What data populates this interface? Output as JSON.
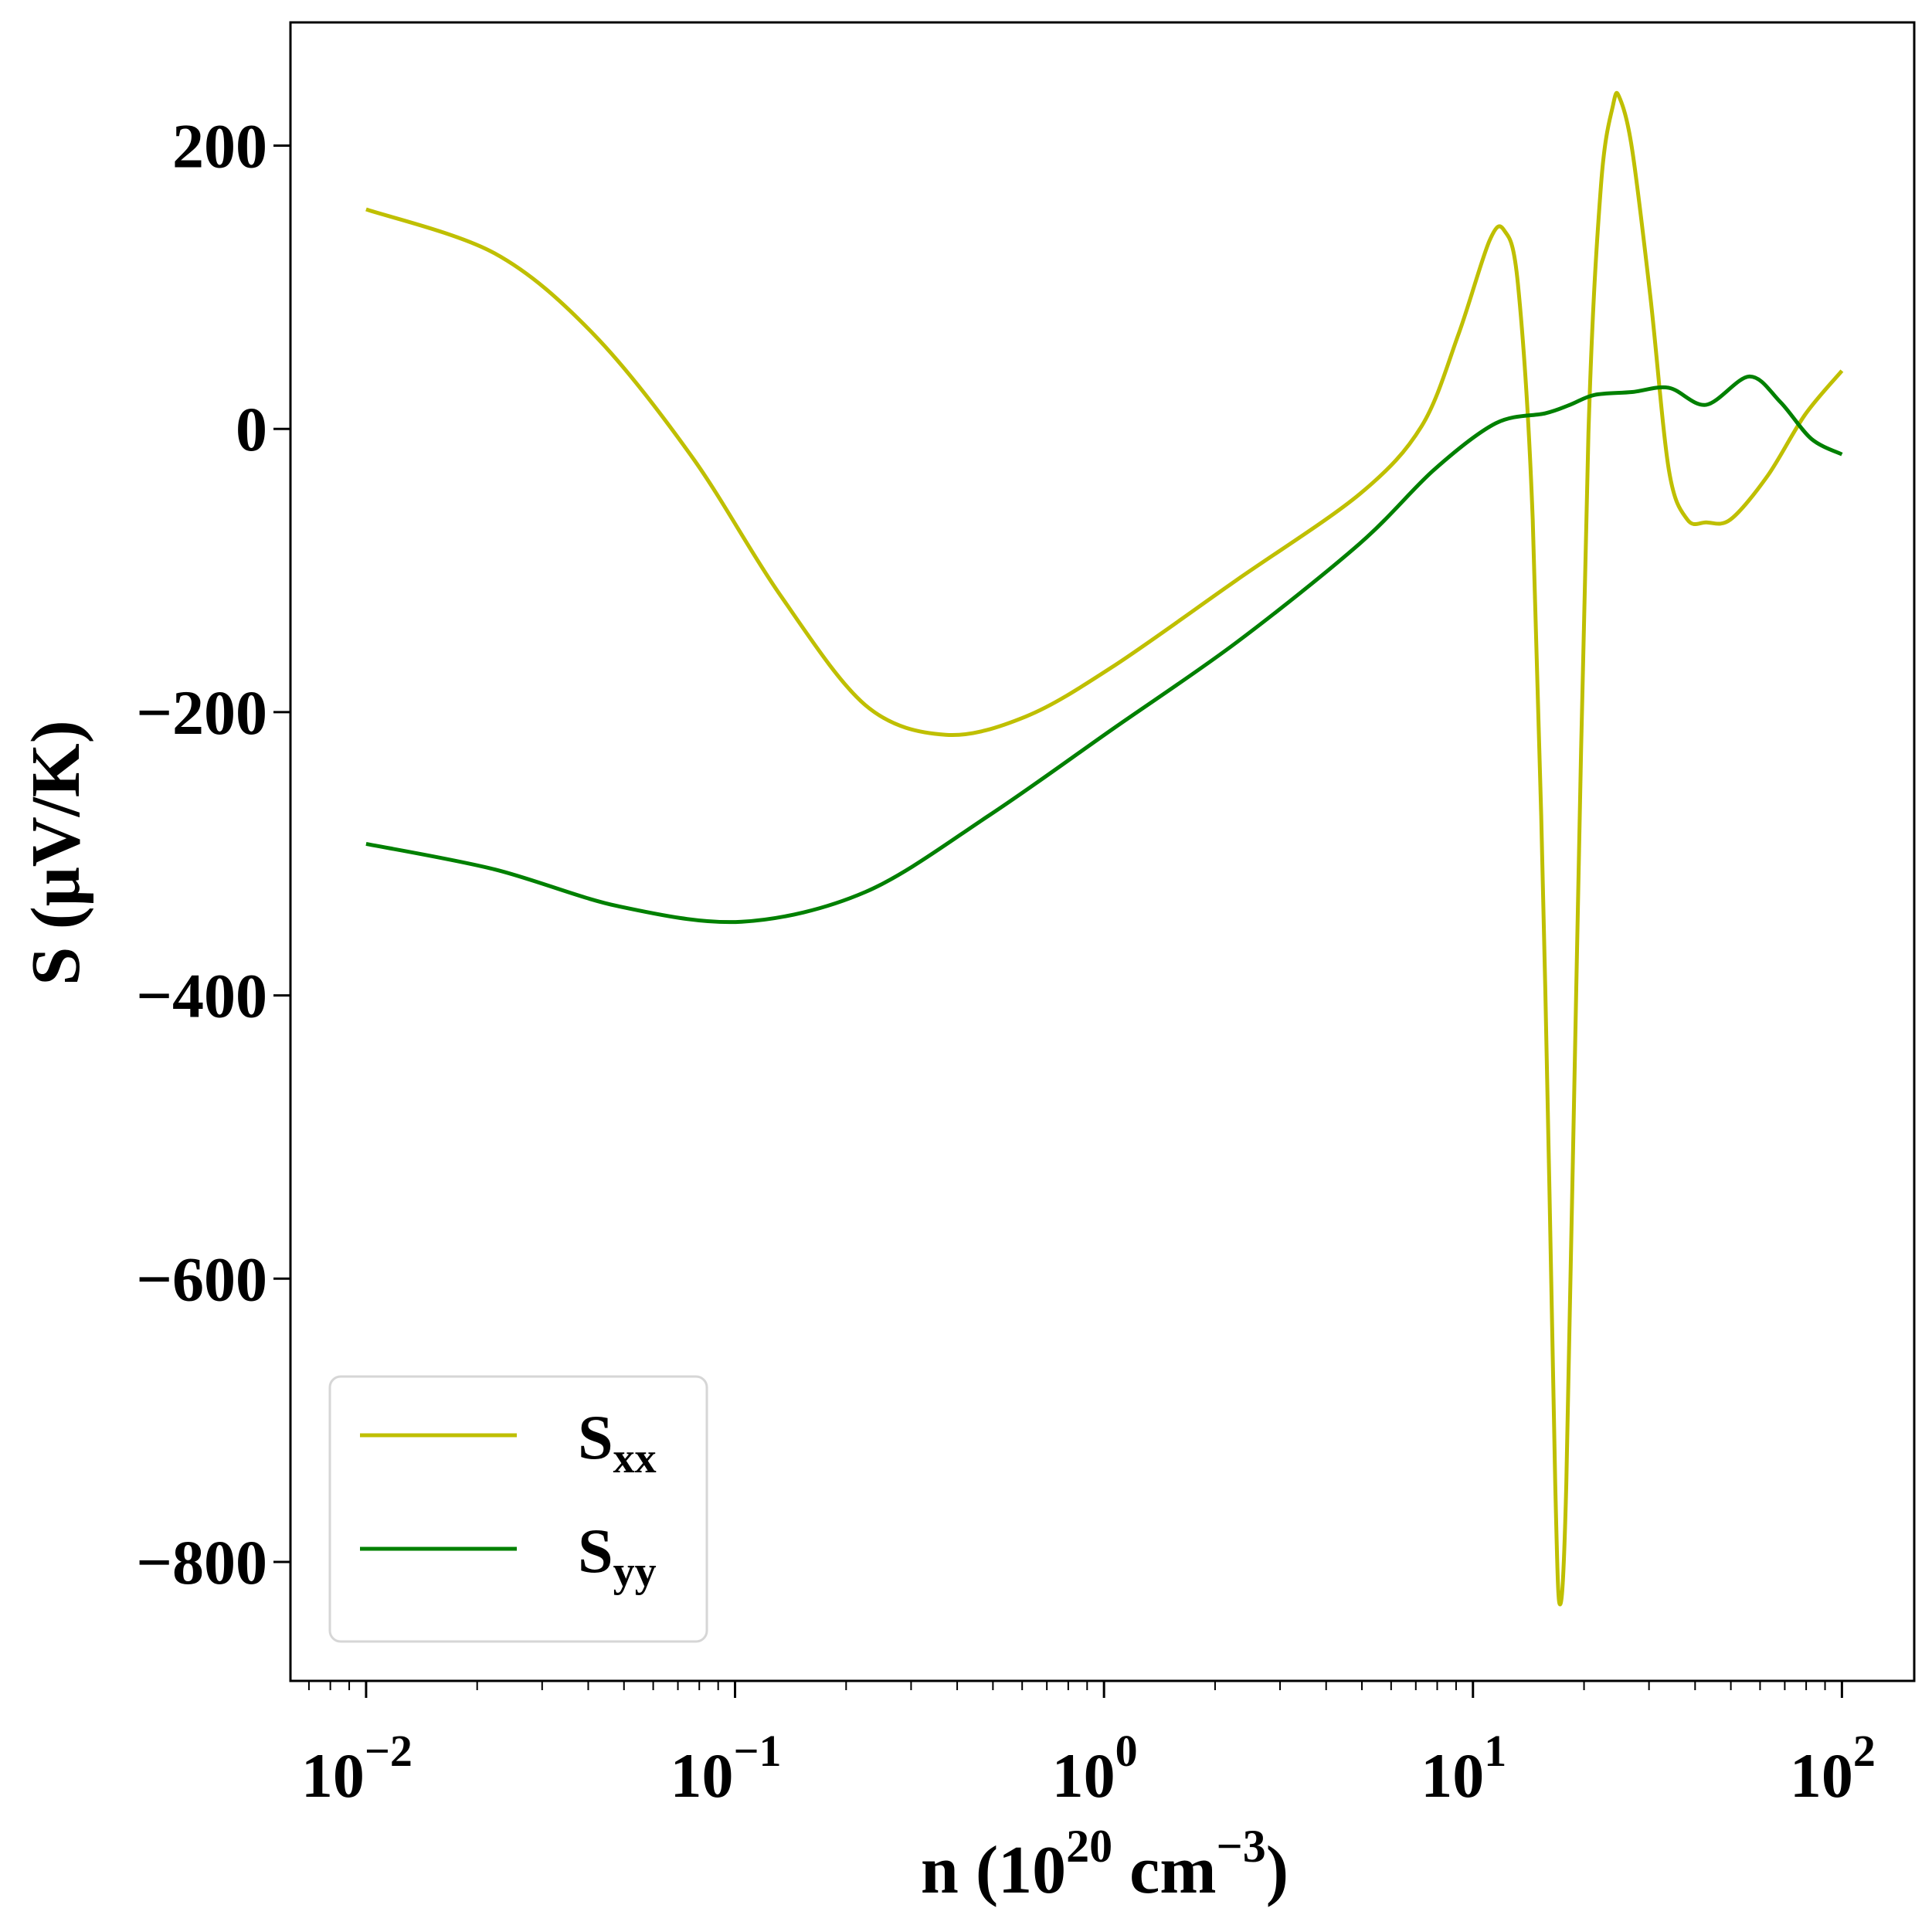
{
  "chart_data": {
    "type": "line",
    "title": "",
    "xlabel": {
      "base": "n (10",
      "sup1": "20",
      "mid": " cm",
      "sup2": "−3",
      "end": ")"
    },
    "ylabel": "S (μV/K)",
    "xscale": "log",
    "xlim_log10": [
      -2.205,
      2.196
    ],
    "ylim": [
      -884,
      287
    ],
    "xticks": [
      {
        "exp": -2,
        "base": "10",
        "sup": "−2"
      },
      {
        "exp": -1,
        "base": "10",
        "sup": "−1"
      },
      {
        "exp": 0,
        "base": "10",
        "sup": "0"
      },
      {
        "exp": 1,
        "base": "10",
        "sup": "1"
      },
      {
        "exp": 2,
        "base": "10",
        "sup": "2"
      }
    ],
    "yticks": [
      {
        "value": 200,
        "label": "200"
      },
      {
        "value": 0,
        "label": "0"
      },
      {
        "value": -200,
        "label": "−200"
      },
      {
        "value": -400,
        "label": "−400"
      },
      {
        "value": -600,
        "label": "−600"
      },
      {
        "value": -800,
        "label": "−800"
      }
    ],
    "grid": false,
    "legend_position": "bottom-left",
    "series": [
      {
        "name": "S",
        "sub": "xx",
        "color": "#bfbf00",
        "log10_n": [
          -2,
          -1.652,
          -1.384,
          -1.116,
          -0.881,
          -0.647,
          -0.429,
          -0.211,
          0.023,
          0.358,
          0.693,
          0.861,
          0.961,
          1.045,
          1.085,
          1.122,
          1.162,
          1.196,
          1.223,
          1.236,
          1.253,
          1.28,
          1.313,
          1.347,
          1.38,
          1.397,
          1.431,
          1.481,
          1.531,
          1.581,
          1.632,
          1.698,
          1.799,
          1.9,
          2.0
        ],
        "S": [
          155,
          124,
          67,
          -20,
          -116,
          -195,
          -216,
          -203,
          -168,
          -107,
          -46,
          2,
          67,
          133,
          140,
          102,
          -64,
          -395,
          -745,
          -830,
          -745,
          -395,
          -3,
          172,
          229,
          234,
          198,
          93,
          -29,
          -64,
          -66,
          -64,
          -33,
          10,
          41
        ]
      },
      {
        "name": "S",
        "sub": "yy",
        "color": "#008000",
        "log10_n": [
          -2,
          -1.652,
          -1.317,
          -0.982,
          -0.647,
          -0.312,
          0.023,
          0.358,
          0.693,
          0.894,
          1.062,
          1.196,
          1.263,
          1.33,
          1.431,
          1.531,
          1.632,
          1.749,
          1.833,
          1.917,
          2.0
        ],
        "S": [
          -293,
          -311,
          -337,
          -348,
          -327,
          -273,
          -212,
          -151,
          -81,
          -29,
          4,
          11,
          17,
          24,
          26,
          29,
          17,
          37,
          19,
          -7,
          -18
        ]
      }
    ]
  }
}
